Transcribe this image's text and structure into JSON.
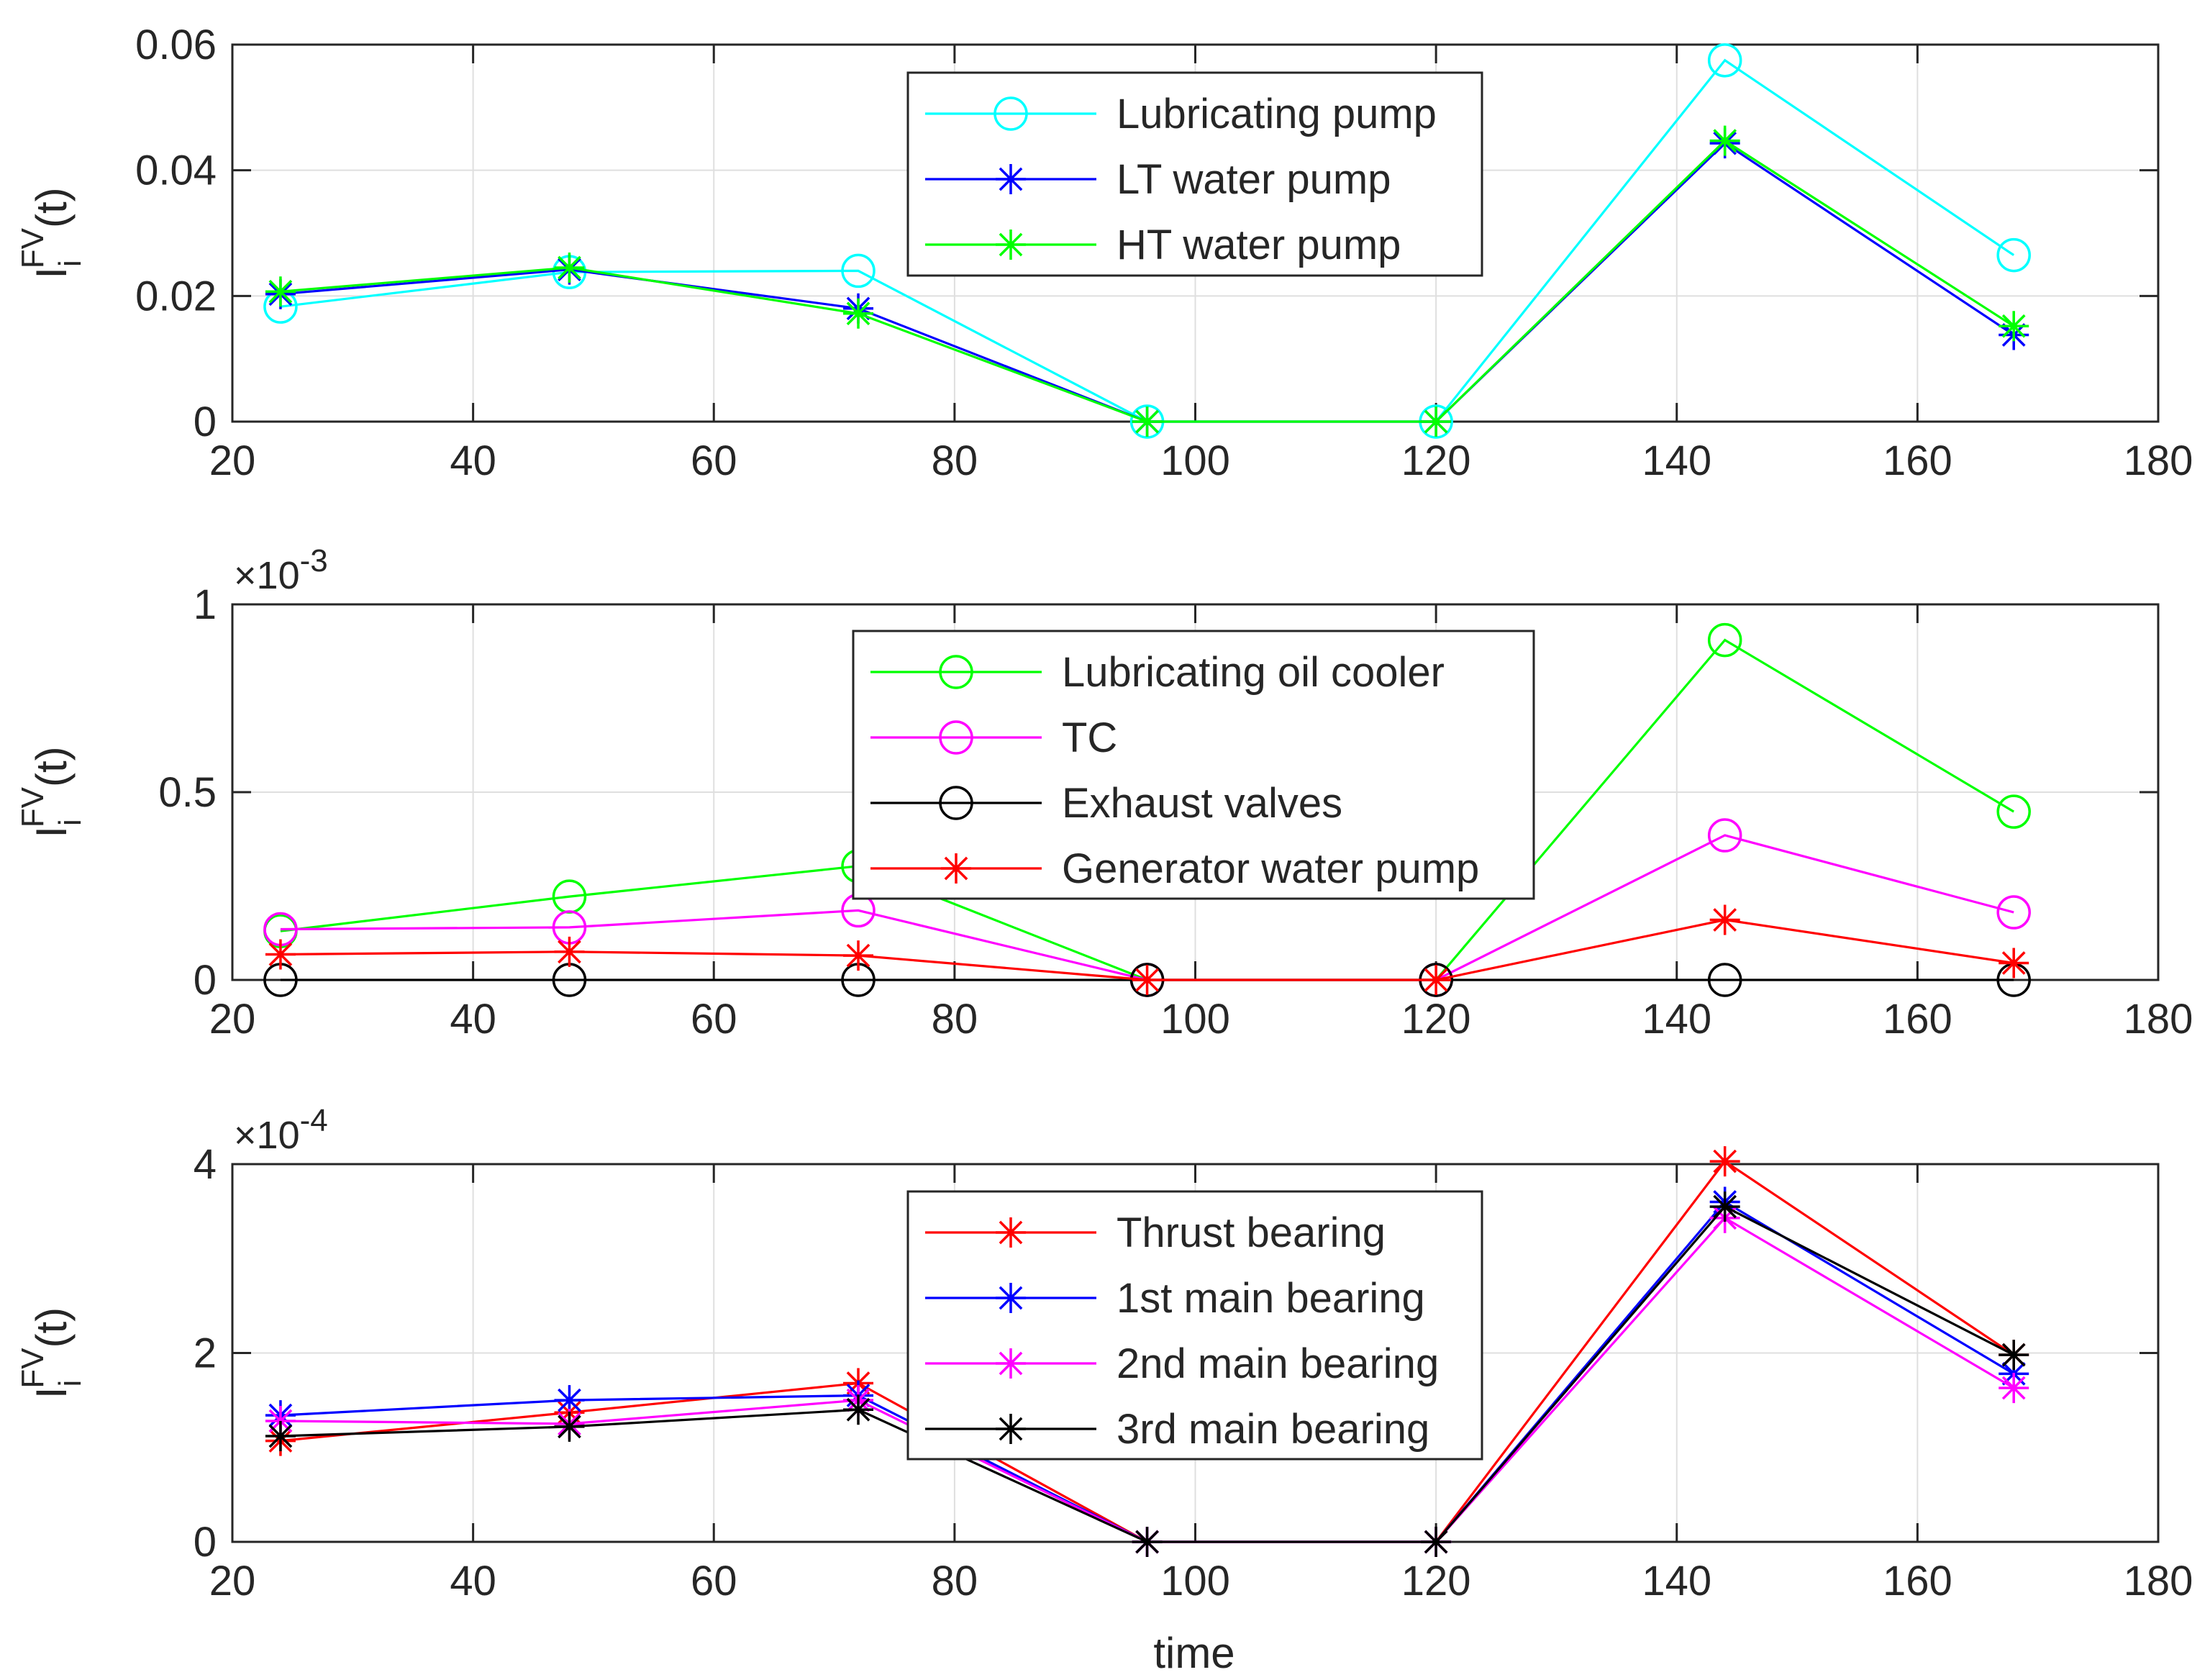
{
  "xlabel": "time",
  "chart_data": [
    {
      "type": "line",
      "title": "",
      "xlabel": "",
      "ylabel_base": "I",
      "ylabel_sup": "FV",
      "ylabel_sub": "i",
      "ylabel_arg": "(t)",
      "xlim": [
        20,
        180
      ],
      "ylim": [
        0,
        0.06
      ],
      "xticks": [
        20,
        40,
        60,
        80,
        100,
        120,
        140,
        160,
        180
      ],
      "yticks": [
        0,
        0.02,
        0.04,
        0.06
      ],
      "ytick_labels": [
        "0",
        "0.02",
        "0.04",
        "0.06"
      ],
      "exponent_base": "",
      "exponent_power": "",
      "grid": true,
      "legend_position": "top-center",
      "x": [
        24,
        48,
        72,
        96,
        120,
        144,
        168
      ],
      "series": [
        {
          "name": "Lubricating pump",
          "color": "#00ffff",
          "marker": "circle",
          "values": [
            0.0183,
            0.0238,
            0.024,
            0.0,
            0.0,
            0.0575,
            0.0265
          ]
        },
        {
          "name": "LT water pump",
          "color": "#0000ff",
          "marker": "asterisk",
          "values": [
            0.0203,
            0.0242,
            0.018,
            0.0,
            0.0,
            0.0443,
            0.0138
          ]
        },
        {
          "name": "HT water pump",
          "color": "#00ff00",
          "marker": "asterisk",
          "values": [
            0.0207,
            0.0245,
            0.0172,
            0.0,
            0.0,
            0.0447,
            0.0152
          ]
        }
      ]
    },
    {
      "type": "line",
      "title": "",
      "xlabel": "",
      "ylabel_base": "I",
      "ylabel_sup": "FV",
      "ylabel_sub": "i",
      "ylabel_arg": "(t)",
      "xlim": [
        20,
        180
      ],
      "ylim": [
        0,
        0.001
      ],
      "xticks": [
        20,
        40,
        60,
        80,
        100,
        120,
        140,
        160,
        180
      ],
      "yticks": [
        0,
        0.0005,
        0.001
      ],
      "ytick_labels": [
        "0",
        "0.5",
        "1"
      ],
      "exponent_base": "×10",
      "exponent_power": "-3",
      "grid": true,
      "legend_position": "top-center",
      "x": [
        24,
        48,
        72,
        96,
        120,
        144,
        168
      ],
      "series": [
        {
          "name": "Lubricating oil cooler",
          "color": "#00ff00",
          "marker": "circle",
          "values": [
            0.00013,
            0.000222,
            0.000303,
            0.0,
            0.0,
            0.000905,
            0.000448
          ]
        },
        {
          "name": "TC",
          "color": "#ff00ff",
          "marker": "circle",
          "values": [
            0.000135,
            0.00014,
            0.000185,
            0.0,
            0.0,
            0.000385,
            0.00018
          ]
        },
        {
          "name": "Exhaust valves",
          "color": "#000000",
          "marker": "circle",
          "values": [
            0.0,
            0.0,
            0.0,
            0.0,
            0.0,
            0.0,
            0.0
          ]
        },
        {
          "name": "Generator water pump",
          "color": "#ff0000",
          "marker": "asterisk",
          "values": [
            6.8e-05,
            7.5e-05,
            6.5e-05,
            0.0,
            0.0,
            0.00016,
            4.5e-05
          ]
        }
      ]
    },
    {
      "type": "line",
      "title": "",
      "xlabel": "time",
      "ylabel_base": "I",
      "ylabel_sup": "FV",
      "ylabel_sub": "i",
      "ylabel_arg": "(t)",
      "xlim": [
        20,
        180
      ],
      "ylim": [
        0,
        0.0004
      ],
      "xticks": [
        20,
        40,
        60,
        80,
        100,
        120,
        140,
        160,
        180
      ],
      "yticks": [
        0,
        0.0002,
        0.0004
      ],
      "ytick_labels": [
        "0",
        "2",
        "4"
      ],
      "exponent_base": "×10",
      "exponent_power": "-4",
      "grid": true,
      "legend_position": "top-center",
      "x": [
        24,
        48,
        72,
        96,
        120,
        144,
        168
      ],
      "series": [
        {
          "name": "Thrust bearing",
          "color": "#ff0000",
          "marker": "asterisk",
          "values": [
            0.000107,
            0.000137,
            0.000168,
            0.0,
            0.0,
            0.000403,
            0.000198
          ]
        },
        {
          "name": "1st main bearing",
          "color": "#0000ff",
          "marker": "asterisk",
          "values": [
            0.000134,
            0.00015,
            0.000155,
            0.0,
            0.0,
            0.00036,
            0.000178
          ]
        },
        {
          "name": "2nd main bearing",
          "color": "#ff00ff",
          "marker": "asterisk",
          "values": [
            0.000128,
            0.000125,
            0.00015,
            0.0,
            0.0,
            0.000343,
            0.000163
          ]
        },
        {
          "name": "3rd main bearing",
          "color": "#000000",
          "marker": "asterisk",
          "values": [
            0.000112,
            0.000122,
            0.00014,
            0.0,
            0.0,
            0.000355,
            0.000198
          ]
        }
      ]
    }
  ]
}
